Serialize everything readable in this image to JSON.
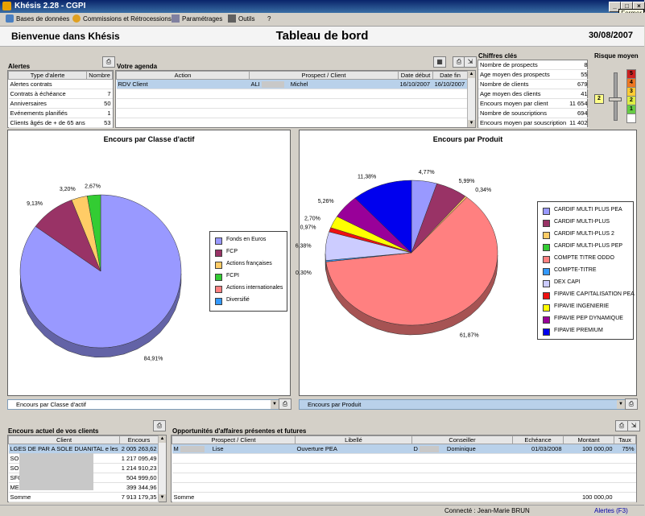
{
  "window": {
    "title": "Khésis 2.28   -   CGPI",
    "close_tooltip": "Fermer"
  },
  "menu": [
    {
      "label": "Bases de données"
    },
    {
      "label": "Commissions et Rétrocessions"
    },
    {
      "label": "Paramétrages"
    },
    {
      "label": "Outils"
    },
    {
      "label": "?"
    }
  ],
  "header": {
    "welcome": "Bienvenue dans Khésis",
    "title": "Tableau de bord",
    "date": "30/08/2007"
  },
  "alertes": {
    "title": "Alertes",
    "columns": [
      "Type d'alerte",
      "Nombre"
    ],
    "rows": [
      {
        "type": "Alertes contrats",
        "count": ""
      },
      {
        "type": "Contrats à échéance",
        "count": "7"
      },
      {
        "type": "Anniversaires",
        "count": "50"
      },
      {
        "type": "Evénements planifiés",
        "count": "1"
      },
      {
        "type": "Clients âgés de + de 65 ans",
        "count": "53"
      }
    ]
  },
  "agenda": {
    "title": "Votre agenda",
    "columns": [
      "Action",
      "Prospect / Client",
      "Date début",
      "Date fin"
    ],
    "rows": [
      {
        "action": "RDV Client",
        "client_a": "ALI",
        "client_b": "Michel",
        "start": "16/10/2007",
        "end": "16/10/2007"
      }
    ]
  },
  "chiffres": {
    "title": "Chiffres clés",
    "rows": [
      {
        "label": "Nombre de prospects",
        "value": "8"
      },
      {
        "label": "Age moyen des prospects",
        "value": "55"
      },
      {
        "label": "Nombre de clients",
        "value": "679"
      },
      {
        "label": "Age moyen des clients",
        "value": "41"
      },
      {
        "label": "Encours moyen par client",
        "value": "11 654"
      },
      {
        "label": "Nombre de souscriptions",
        "value": "694"
      },
      {
        "label": "Encours moyen par souscription",
        "value": "11 402"
      }
    ]
  },
  "risque": {
    "title": "Risque moyen",
    "levels": [
      "5",
      "4",
      "3",
      "2",
      "1"
    ],
    "current": "2"
  },
  "chart_data": [
    {
      "type": "pie",
      "title": "Encours par Classe d'actif",
      "slices": [
        {
          "label": "Fonds en Euros",
          "value": 84.91,
          "text": "84,91%",
          "color": "#9999ff"
        },
        {
          "label": "FCP",
          "value": 9.13,
          "text": "9,13%",
          "color": "#993366"
        },
        {
          "label": "Actions françaises",
          "value": 3.2,
          "text": "3,20%",
          "color": "#ffcc66"
        },
        {
          "label": "FCPI",
          "value": 2.67,
          "text": "2,67%",
          "color": "#33cc33"
        },
        {
          "label": "Actions internationales",
          "value": 0,
          "text": "",
          "color": "#ff8080"
        },
        {
          "label": "Diversifié",
          "value": 0,
          "text": "",
          "color": "#3399ff"
        }
      ],
      "legend_placement": "right"
    },
    {
      "type": "pie",
      "title": "Encours par Produit",
      "slices": [
        {
          "label": "CARDIF MULTI PLUS PEA",
          "value": 4.77,
          "text": "4,77%",
          "color": "#9999ff"
        },
        {
          "label": "CARDIF MULTI-PLUS",
          "value": 5.99,
          "text": "5,99%",
          "color": "#993366"
        },
        {
          "label": "CARDIF MULTI-PLUS 2",
          "value": 0.34,
          "text": "0,34%",
          "color": "#ffcc66"
        },
        {
          "label": "CARDIF MULTI-PLUS PEP",
          "value": 0,
          "text": "",
          "color": "#33cc33"
        },
        {
          "label": "COMPTE TITRE ODDO",
          "value": 61.87,
          "text": "61,87%",
          "color": "#ff8080"
        },
        {
          "label": "COMPTE-TITRE",
          "value": 0.3,
          "text": "0,30%",
          "color": "#3399ff"
        },
        {
          "label": "DEX CAPI",
          "value": 6.38,
          "text": "6,38%",
          "color": "#ccccff"
        },
        {
          "label": "FIPAVIE CAPITALISATION PEA",
          "value": 0.97,
          "text": "0,97%",
          "color": "#ee1111"
        },
        {
          "label": "FIPAVIE INGENIERIE",
          "value": 2.7,
          "text": "2,70%",
          "color": "#ffff00"
        },
        {
          "label": "FIPAVIE PEP DYNAMIQUE",
          "value": 5.26,
          "text": "5,26%",
          "color": "#990099"
        },
        {
          "label": "FIPAVIE PREMIUM",
          "value": 11.38,
          "text": "11,38%",
          "color": "#0000ee"
        }
      ],
      "legend_placement": "right"
    }
  ],
  "dropdowns": {
    "left": "Encours par Classe d'actif",
    "right": "Encours par Produit"
  },
  "encours": {
    "title": "Encours actuel de vos clients",
    "columns": [
      "Client",
      "Encours"
    ],
    "rows": [
      {
        "client": "LGES DE PAR A SOLE DUANITAL e les",
        "amount": "2 005 263,62"
      },
      {
        "client": "SON ERS",
        "amount": "1 217 095,49"
      },
      {
        "client": "SOD c D",
        "amount": "1 214 910,23"
      },
      {
        "client": "SFO c D",
        "amount": "504 999,60"
      },
      {
        "client": "ME",
        "amount": "399 344,96"
      }
    ],
    "total_label": "Somme",
    "total": "7 913 179,35"
  },
  "opportunites": {
    "title": "Opportunités d'affaires présentes et futures",
    "columns": [
      "Prospect / Client",
      "Libellé",
      "Conseiller",
      "Echéance",
      "Montant",
      "Taux"
    ],
    "rows": [
      {
        "client_a": "M",
        "client_b": "Lise",
        "libelle": "Ouverture PEA",
        "conseiller_a": "D",
        "conseiller_b": "Dominique",
        "echeance": "01/03/2008",
        "montant": "100 000,00",
        "taux": "75%"
      }
    ],
    "total_label": "Somme",
    "total": "100 000,00"
  },
  "status": {
    "connected": "Connecté : Jean-Marie BRUN",
    "alerts": "Alertes (F3)"
  }
}
